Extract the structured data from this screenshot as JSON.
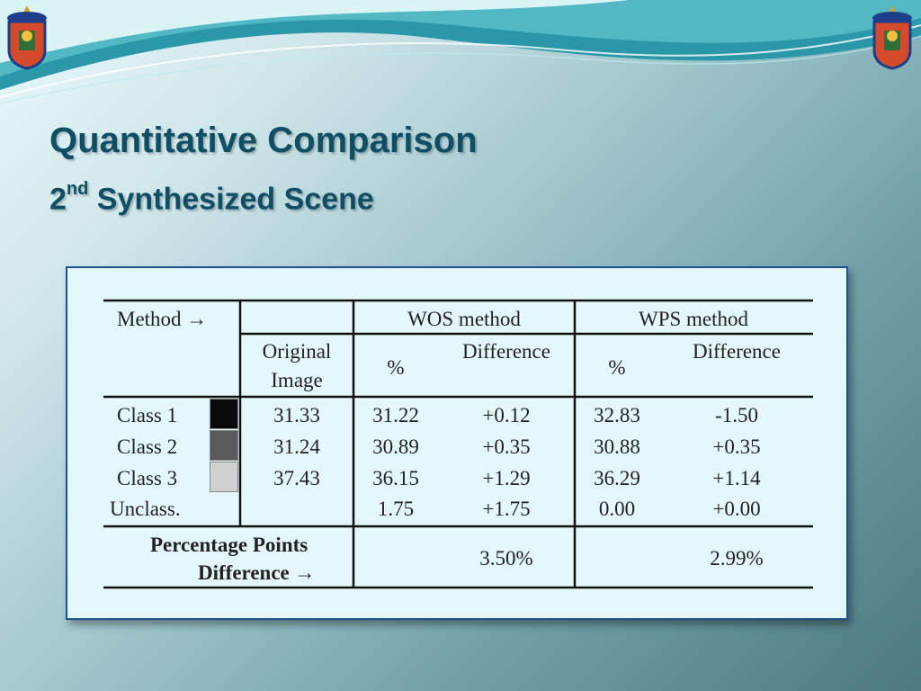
{
  "slide": {
    "title": "Quantitative Comparison",
    "subtitle_main": "2",
    "subtitle_sup": "nd",
    "subtitle_rest": " Synthesized Scene"
  },
  "table": {
    "method_label": "Method →",
    "wos_header": "WOS method",
    "wps_header": "WPS method",
    "orig_line1": "Original",
    "orig_line2": "Image",
    "pct": "%",
    "diff": "Difference",
    "rows": [
      {
        "label": "Class 1",
        "orig": "31.33",
        "wos_pct": "31.22",
        "wos_diff": "+0.12",
        "wps_pct": "32.83",
        "wps_diff": "-1.50",
        "swatch": "#0a0a0a"
      },
      {
        "label": "Class 2",
        "orig": "31.24",
        "wos_pct": "30.89",
        "wos_diff": "+0.35",
        "wps_pct": "30.88",
        "wps_diff": "+0.35",
        "swatch": "#5a5a5a"
      },
      {
        "label": "Class 3",
        "orig": "37.43",
        "wos_pct": "36.15",
        "wos_diff": "+1.29",
        "wps_pct": "36.29",
        "wps_diff": "+1.14",
        "swatch": "#d0d0d0"
      },
      {
        "label": "Unclass.",
        "orig": "",
        "wos_pct": "1.75",
        "wos_diff": "+1.75",
        "wps_pct": "0.00",
        "wps_diff": "+0.00",
        "swatch": ""
      }
    ],
    "footer_line1": "Percentage Points",
    "footer_line2": "Difference →",
    "wos_total": "3.50%",
    "wps_total": "2.99%"
  },
  "colors": {
    "title": "#0f4f66",
    "table_bg": "#e4f7fb",
    "table_border": "#1e4f8e"
  }
}
